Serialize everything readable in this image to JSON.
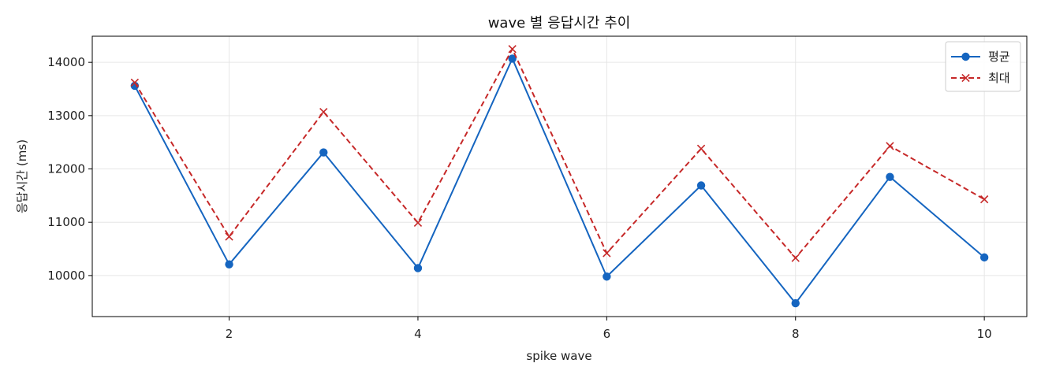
{
  "chart_data": {
    "type": "line",
    "title": "wave 별 응답시간 추이",
    "xlabel": "spike wave",
    "ylabel": "응답시간 (ms)",
    "x": [
      1,
      2,
      3,
      4,
      5,
      6,
      7,
      8,
      9,
      10
    ],
    "xlim": [
      0.55,
      10.45
    ],
    "ylim": [
      9230,
      14490
    ],
    "xticks": [
      2,
      4,
      6,
      8,
      10
    ],
    "yticks": [
      10000,
      11000,
      12000,
      13000,
      14000
    ],
    "grid": true,
    "legend_position": "top-right",
    "series": [
      {
        "name": "평균",
        "color": "#1565c0",
        "line_style": "solid",
        "marker": "circle",
        "values": [
          13560,
          10210,
          12310,
          10140,
          14070,
          9980,
          11690,
          9480,
          11850,
          10340
        ]
      },
      {
        "name": "최대",
        "color": "#c62828",
        "line_style": "dashed",
        "marker": "x",
        "values": [
          13620,
          10730,
          13070,
          10990,
          14250,
          10420,
          12380,
          10330,
          12430,
          11430
        ]
      }
    ]
  }
}
